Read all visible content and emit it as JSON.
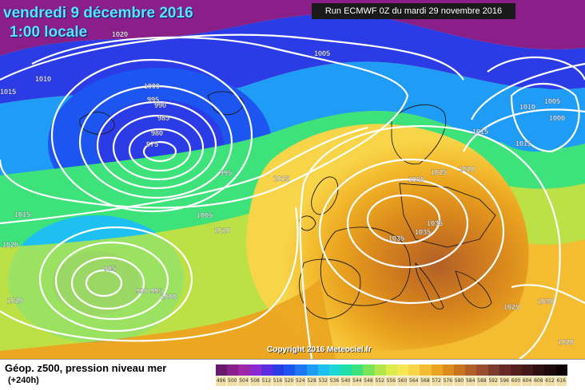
{
  "title": {
    "date_line": "vendredi 9 décembre 2016",
    "time_line": "1:00 locale"
  },
  "run_label": "Run ECMWF 0Z du mardi 29 novembre 2016",
  "copyright": "Copyright 2016 Meteociel.fr",
  "product": {
    "name": "Géop. z500, pression niveau mer",
    "lead_time": "(+240h)"
  },
  "legend": {
    "values": [
      "496",
      "500",
      "504",
      "508",
      "512",
      "516",
      "520",
      "524",
      "528",
      "532",
      "536",
      "540",
      "544",
      "548",
      "552",
      "556",
      "560",
      "564",
      "568",
      "572",
      "576",
      "580",
      "584",
      "588",
      "592",
      "596",
      "600",
      "604",
      "608",
      "612",
      "616"
    ],
    "colors": [
      "#6a1a6e",
      "#8a1f8a",
      "#a026a8",
      "#8a2ad0",
      "#5a2ee0",
      "#2b3ce6",
      "#1c55f0",
      "#1e78f4",
      "#1e9cf6",
      "#1ec0f2",
      "#1ed8d8",
      "#1ee0a8",
      "#3ee27a",
      "#7ae45a",
      "#b2e84a",
      "#dcec4c",
      "#f6e854",
      "#f8d448",
      "#f4bc30",
      "#eaa420",
      "#dc8c1c",
      "#c87420",
      "#b06028",
      "#9a4c2e",
      "#7e3a2c",
      "#6a2a24",
      "#561e1e",
      "#441818",
      "#301010",
      "#1e0a0a",
      "#0c0404"
    ]
  },
  "isobar_labels": [
    "1020",
    "1010",
    "1015",
    "1005",
    "1000",
    "995",
    "990",
    "985",
    "980",
    "975",
    "995",
    "1015",
    "1005",
    "1010",
    "1015",
    "1020",
    "985",
    "990",
    "995",
    "1000",
    "1020",
    "1030",
    "1025",
    "1020",
    "1015",
    "1035",
    "1035",
    "1035",
    "1015",
    "1010",
    "1005",
    "1000",
    "1025",
    "1030",
    "1020"
  ]
}
